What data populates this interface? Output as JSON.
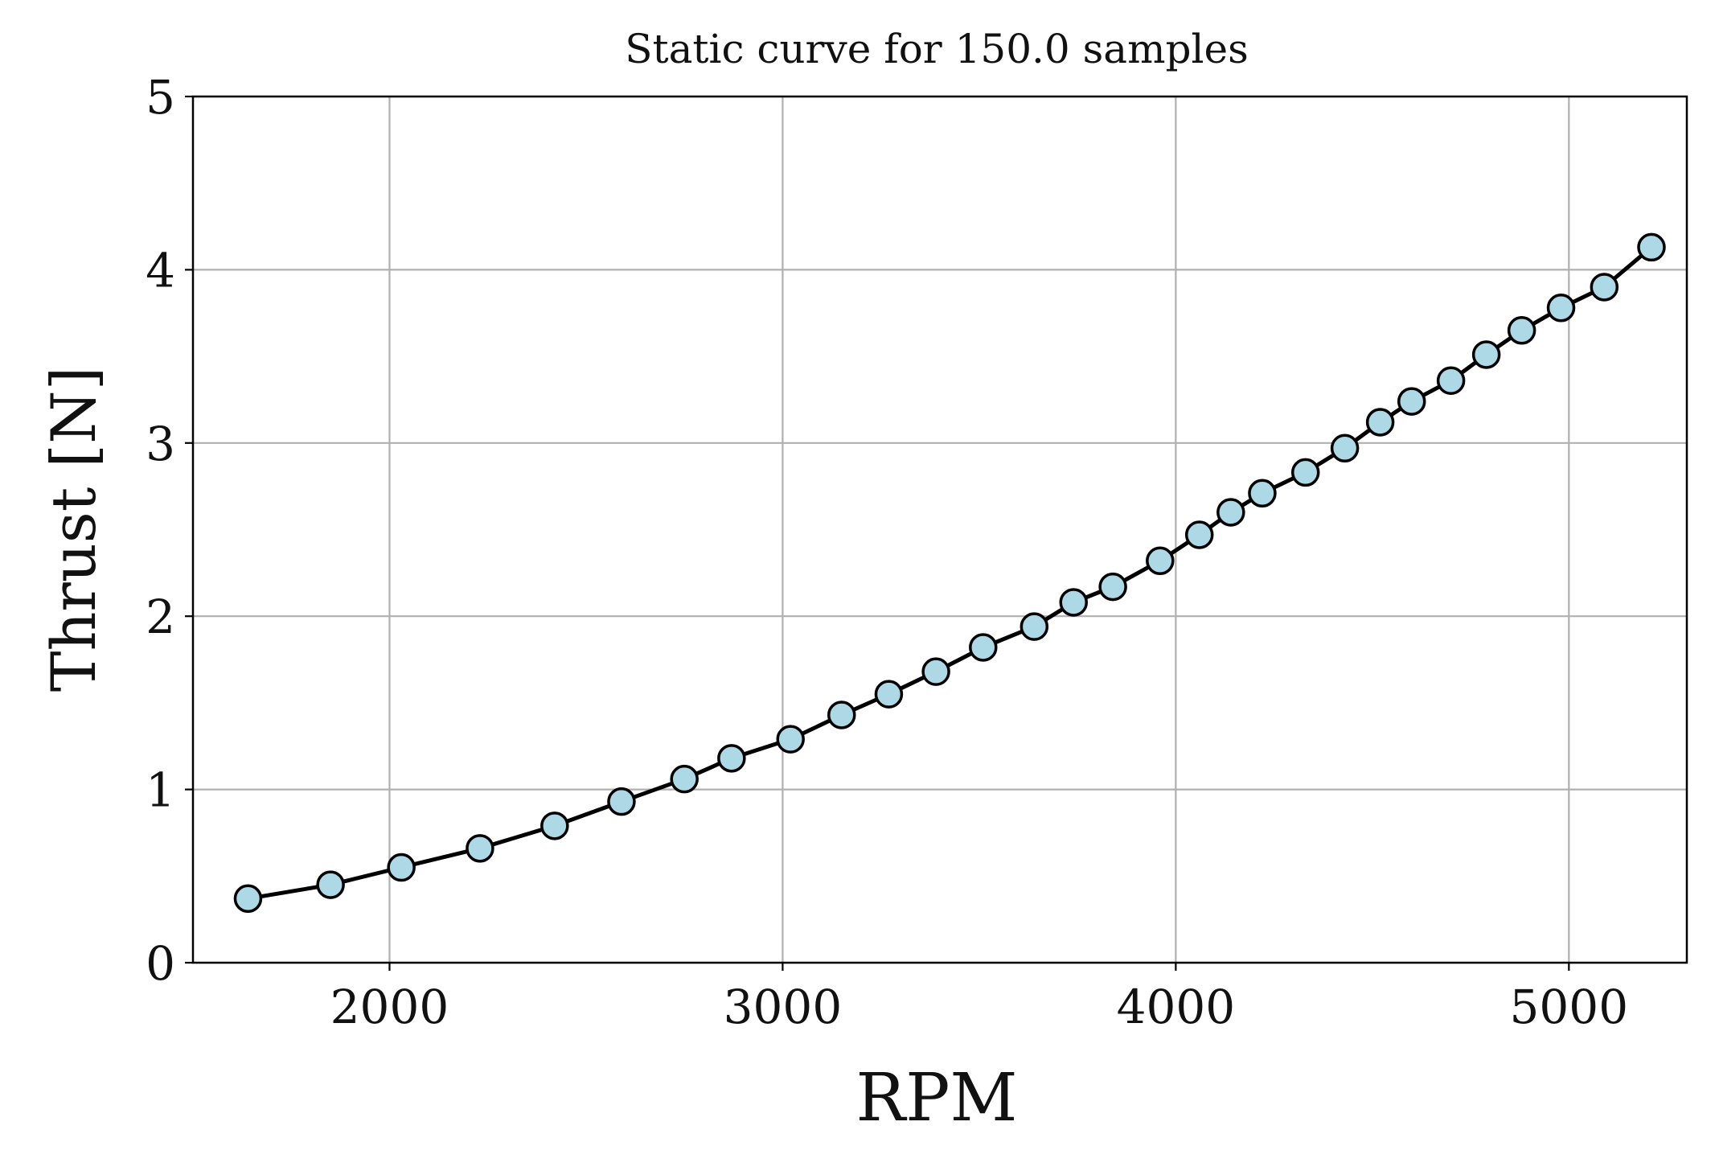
{
  "chart_data": {
    "type": "line",
    "title": "Static curve for 150.0 samples",
    "xlabel": "RPM",
    "ylabel": "Thrust [N]",
    "xlim": [
      1500,
      5300
    ],
    "ylim": [
      0,
      5
    ],
    "xticks": [
      2000,
      3000,
      4000,
      5000
    ],
    "yticks": [
      0,
      1,
      2,
      3,
      4,
      5
    ],
    "grid": true,
    "line_color": "#000000",
    "marker_fill": "#add8e6",
    "marker_edge": "#000000",
    "grid_color": "#b0b0b0",
    "series": [
      {
        "x": [
          1640,
          1850,
          2030,
          2230,
          2420,
          2590,
          2750,
          2870,
          3020,
          3150,
          3270,
          3390,
          3510,
          3640,
          3740,
          3840,
          3960,
          4060,
          4140,
          4220,
          4330,
          4430,
          4520,
          4600,
          4700,
          4790,
          4880,
          4980,
          5090,
          5210
        ],
        "y": [
          0.37,
          0.45,
          0.55,
          0.66,
          0.79,
          0.93,
          1.06,
          1.18,
          1.29,
          1.43,
          1.55,
          1.68,
          1.82,
          1.94,
          2.08,
          2.17,
          2.32,
          2.47,
          2.6,
          2.71,
          2.83,
          2.97,
          3.12,
          3.24,
          3.36,
          3.51,
          3.65,
          3.78,
          3.9,
          4.13
        ]
      }
    ]
  }
}
